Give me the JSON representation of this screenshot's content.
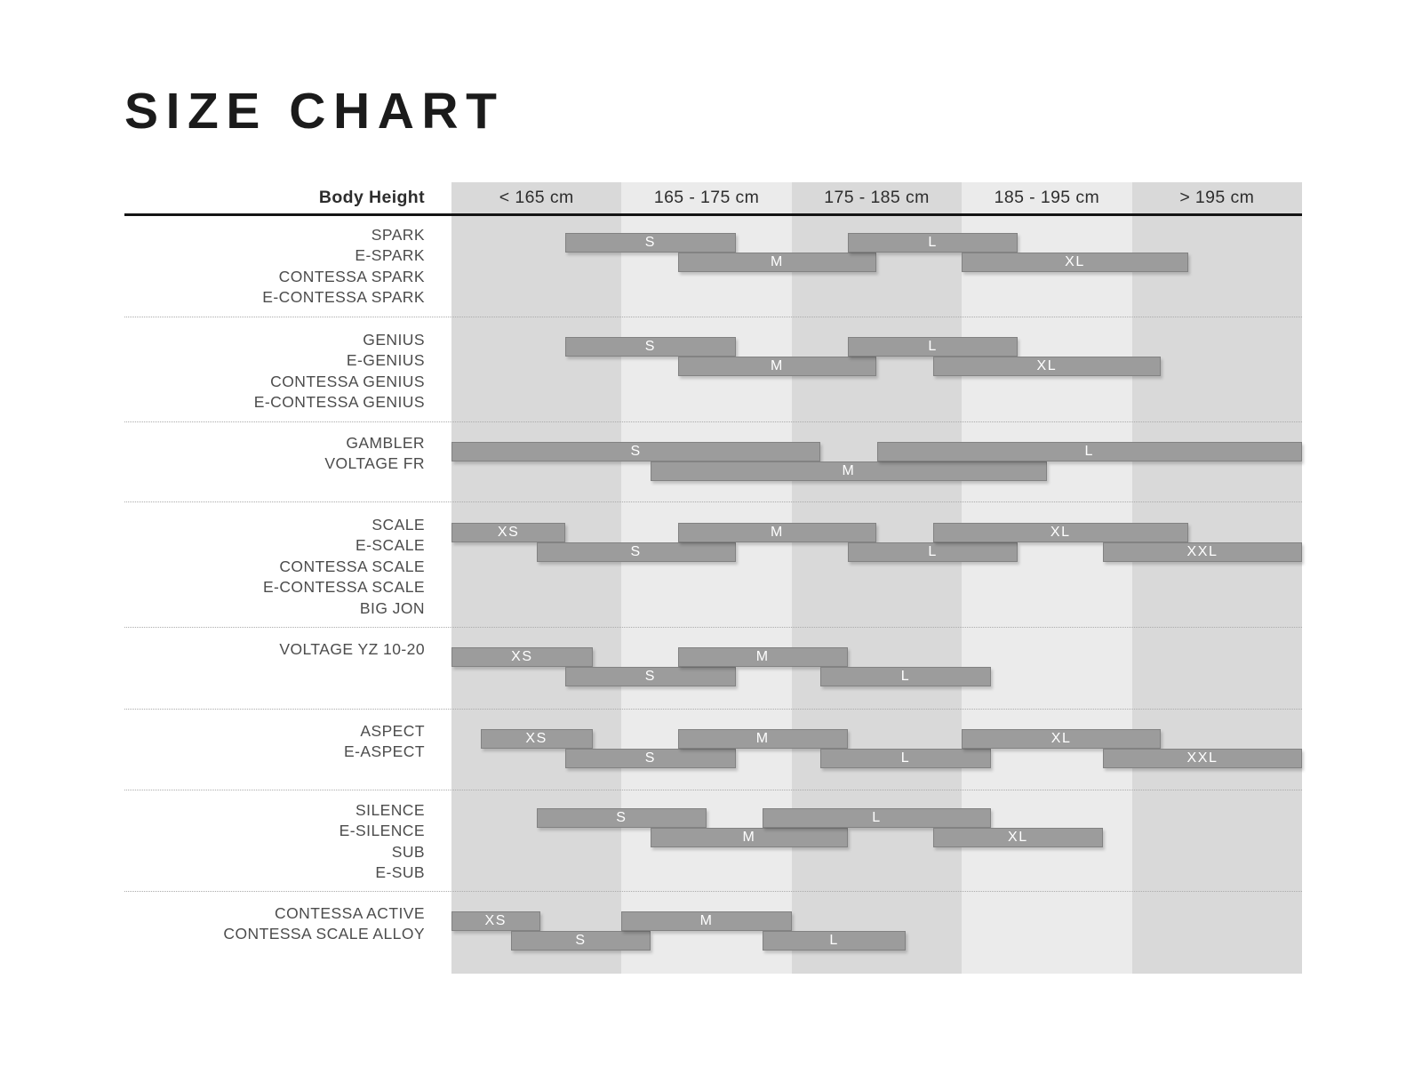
{
  "title": "SIZE CHART",
  "header": {
    "row_label": "Body Height",
    "columns": [
      "< 165 cm",
      "165 - 175 cm",
      "175 - 185 cm",
      "185 - 195 cm",
      "> 195 cm"
    ]
  },
  "colors": {
    "page_bg": "#ffffff",
    "column_shade_dark": "#d9d9d9",
    "column_shade_light": "#ebebeb",
    "bar_fill": "#9c9c9c",
    "bar_border": "#828282",
    "bar_label": "#ffffff",
    "title": "#1b1b1b",
    "model_label": "#4c4c4c",
    "header_text": "#2d2d2d",
    "header_rule": "#141414",
    "separator": "#ababab"
  },
  "chart_data": {
    "type": "bar",
    "title": "SIZE CHART",
    "xlabel": "Body Height",
    "x_bands": [
      "< 165 cm",
      "165 - 175 cm",
      "175 - 185 cm",
      "185 - 195 cm",
      "> 195 cm"
    ],
    "x_range": [
      0,
      5
    ],
    "units_note": "bar start/end expressed in body-height band units: 0 = left edge of '< 165 cm' column, 5 = right edge of '> 195 cm' column, each band = 10 cm",
    "grid": "alternating shaded vertical columns",
    "legend_position": "none",
    "groups": [
      {
        "models": [
          "SPARK",
          "E-SPARK",
          "CONTESSA SPARK",
          "E-CONTESSA SPARK"
        ],
        "bars": [
          {
            "size": "S",
            "start": 0.67,
            "end": 1.67,
            "row": 0
          },
          {
            "size": "M",
            "start": 1.33,
            "end": 2.5,
            "row": 1
          },
          {
            "size": "L",
            "start": 2.33,
            "end": 3.33,
            "row": 0
          },
          {
            "size": "XL",
            "start": 3.0,
            "end": 4.33,
            "row": 1
          }
        ]
      },
      {
        "models": [
          "GENIUS",
          "E-GENIUS",
          "CONTESSA GENIUS",
          "E-CONTESSA GENIUS"
        ],
        "bars": [
          {
            "size": "S",
            "start": 0.67,
            "end": 1.67,
            "row": 0
          },
          {
            "size": "M",
            "start": 1.33,
            "end": 2.5,
            "row": 1
          },
          {
            "size": "L",
            "start": 2.33,
            "end": 3.33,
            "row": 0
          },
          {
            "size": "XL",
            "start": 2.83,
            "end": 4.17,
            "row": 1
          }
        ]
      },
      {
        "models": [
          "GAMBLER",
          "VOLTAGE FR"
        ],
        "bars": [
          {
            "size": "S",
            "start": 0.0,
            "end": 2.17,
            "row": 0
          },
          {
            "size": "M",
            "start": 1.17,
            "end": 3.5,
            "row": 1
          },
          {
            "size": "L",
            "start": 2.5,
            "end": 5.0,
            "row": 0
          }
        ]
      },
      {
        "models": [
          "SCALE",
          "E-SCALE",
          "CONTESSA SCALE",
          "E-CONTESSA SCALE",
          "BIG JON"
        ],
        "bars": [
          {
            "size": "XS",
            "start": 0.0,
            "end": 0.67,
            "row": 0
          },
          {
            "size": "S",
            "start": 0.5,
            "end": 1.67,
            "row": 1
          },
          {
            "size": "M",
            "start": 1.33,
            "end": 2.5,
            "row": 0
          },
          {
            "size": "L",
            "start": 2.33,
            "end": 3.33,
            "row": 1
          },
          {
            "size": "XL",
            "start": 2.83,
            "end": 4.33,
            "row": 0
          },
          {
            "size": "XXL",
            "start": 3.83,
            "end": 5.0,
            "row": 1
          }
        ]
      },
      {
        "models": [
          "VOLTAGE YZ 10-20"
        ],
        "bars": [
          {
            "size": "XS",
            "start": 0.0,
            "end": 0.83,
            "row": 0
          },
          {
            "size": "S",
            "start": 0.67,
            "end": 1.67,
            "row": 1
          },
          {
            "size": "M",
            "start": 1.33,
            "end": 2.33,
            "row": 0
          },
          {
            "size": "L",
            "start": 2.17,
            "end": 3.17,
            "row": 1
          }
        ]
      },
      {
        "models": [
          "ASPECT",
          "E-ASPECT"
        ],
        "bars": [
          {
            "size": "XS",
            "start": 0.17,
            "end": 0.83,
            "row": 0
          },
          {
            "size": "S",
            "start": 0.67,
            "end": 1.67,
            "row": 1
          },
          {
            "size": "M",
            "start": 1.33,
            "end": 2.33,
            "row": 0
          },
          {
            "size": "L",
            "start": 2.17,
            "end": 3.17,
            "row": 1
          },
          {
            "size": "XL",
            "start": 3.0,
            "end": 4.17,
            "row": 0
          },
          {
            "size": "XXL",
            "start": 3.83,
            "end": 5.0,
            "row": 1
          }
        ]
      },
      {
        "models": [
          "SILENCE",
          "E-SILENCE",
          "SUB",
          "E-SUB"
        ],
        "bars": [
          {
            "size": "S",
            "start": 0.5,
            "end": 1.5,
            "row": 0
          },
          {
            "size": "M",
            "start": 1.17,
            "end": 2.33,
            "row": 1
          },
          {
            "size": "L",
            "start": 1.83,
            "end": 3.17,
            "row": 0
          },
          {
            "size": "XL",
            "start": 2.83,
            "end": 3.83,
            "row": 1
          }
        ]
      },
      {
        "models": [
          "CONTESSA ACTIVE",
          "CONTESSA SCALE ALLOY"
        ],
        "bars": [
          {
            "size": "XS",
            "start": 0.0,
            "end": 0.52,
            "row": 0
          },
          {
            "size": "S",
            "start": 0.35,
            "end": 1.17,
            "row": 1
          },
          {
            "size": "M",
            "start": 1.0,
            "end": 2.0,
            "row": 0
          },
          {
            "size": "L",
            "start": 1.83,
            "end": 2.67,
            "row": 1
          }
        ]
      }
    ]
  }
}
